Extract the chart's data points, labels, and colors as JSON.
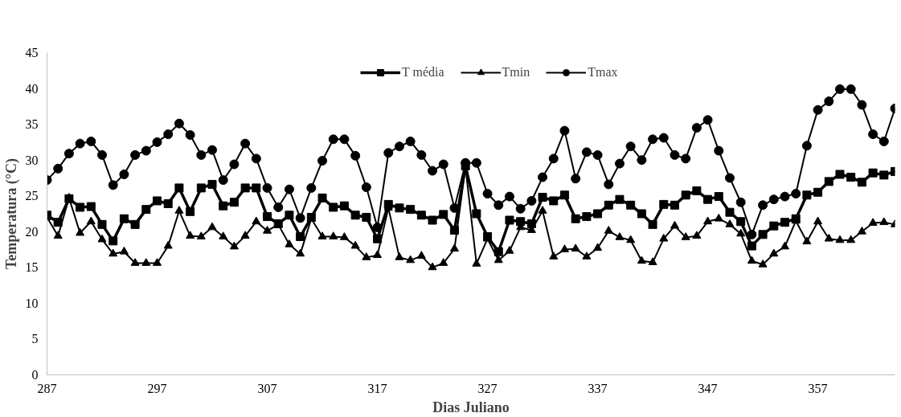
{
  "chart_data": {
    "type": "line",
    "xlabel": "Dias Juliano",
    "ylabel": "Temperatura (°C)",
    "x": [
      287,
      288,
      289,
      290,
      291,
      292,
      293,
      294,
      295,
      296,
      297,
      298,
      299,
      300,
      301,
      302,
      303,
      304,
      305,
      306,
      307,
      308,
      309,
      310,
      311,
      312,
      313,
      314,
      315,
      316,
      317,
      318,
      319,
      320,
      321,
      322,
      323,
      324,
      325,
      326,
      327,
      328,
      329,
      330,
      331,
      332,
      333,
      334,
      335,
      336,
      337,
      338,
      339,
      340,
      341,
      342,
      343,
      344,
      345,
      346,
      347,
      348,
      349,
      350,
      351,
      352,
      353,
      354,
      355,
      356,
      357,
      358,
      359,
      360,
      361,
      362,
      363,
      364
    ],
    "xlim": [
      287,
      364
    ],
    "xticks": [
      287,
      297,
      307,
      317,
      327,
      337,
      347,
      357
    ],
    "ylim": [
      0,
      45
    ],
    "yticks": [
      0,
      5,
      10,
      15,
      20,
      25,
      30,
      35,
      40,
      45
    ],
    "grid": false,
    "legend": "top",
    "series": [
      {
        "name": "T média",
        "color": "#000000",
        "marker": "square",
        "values": [
          22.3,
          21.3,
          24.6,
          23.4,
          23.5,
          21.0,
          18.7,
          21.8,
          21.0,
          23.1,
          24.3,
          23.9,
          26.1,
          22.8,
          26.1,
          26.6,
          23.6,
          24.1,
          26.1,
          26.1,
          22.1,
          21.1,
          22.3,
          19.3,
          22.0,
          24.7,
          23.4,
          23.6,
          22.3,
          22.0,
          19.0,
          23.8,
          23.3,
          23.1,
          22.3,
          21.6,
          22.4,
          20.2,
          29.2,
          22.5,
          19.3,
          17.2,
          21.6,
          21.4,
          21.1,
          24.8,
          24.3,
          25.1,
          21.8,
          22.1,
          22.5,
          23.7,
          24.5,
          23.7,
          22.5,
          21.0,
          23.8,
          23.7,
          25.1,
          25.7,
          24.5,
          24.9,
          22.7,
          21.4,
          18.0,
          19.6,
          20.8,
          21.3,
          21.8,
          25.1,
          25.5,
          27.0,
          28.0,
          27.6,
          26.9,
          28.2,
          27.9,
          28.4
        ]
      },
      {
        "name": "Tmin",
        "color": "#000000",
        "marker": "triangle",
        "values": [
          22.0,
          19.4,
          24.7,
          19.8,
          21.4,
          18.9,
          16.9,
          17.2,
          15.6,
          15.6,
          15.6,
          18.0,
          22.9,
          19.4,
          19.3,
          20.6,
          19.3,
          17.9,
          19.4,
          21.4,
          20.1,
          21.0,
          18.2,
          16.9,
          21.8,
          19.3,
          19.3,
          19.2,
          18.0,
          16.4,
          16.7,
          23.3,
          16.4,
          16.0,
          16.6,
          15.0,
          15.6,
          17.6,
          29.0,
          15.5,
          19.0,
          16.0,
          17.3,
          20.6,
          20.2,
          22.9,
          16.5,
          17.5,
          17.6,
          16.5,
          17.7,
          20.1,
          19.2,
          18.8,
          15.9,
          15.7,
          19.0,
          20.8,
          19.2,
          19.4,
          21.4,
          21.8,
          21.0,
          19.7,
          15.9,
          15.4,
          16.9,
          17.9,
          21.5,
          18.6,
          21.4,
          19.0,
          18.8,
          18.8,
          20.0,
          21.2,
          21.3,
          21.0
        ]
      },
      {
        "name": "Tmax",
        "color": "#000000",
        "marker": "circle",
        "values": [
          27.2,
          28.8,
          30.9,
          32.3,
          32.6,
          30.7,
          26.5,
          28.0,
          30.7,
          31.3,
          32.5,
          33.6,
          35.1,
          33.5,
          30.7,
          31.4,
          27.2,
          29.4,
          32.3,
          30.2,
          26.1,
          23.4,
          25.9,
          21.9,
          26.1,
          29.9,
          32.9,
          32.9,
          30.6,
          26.2,
          20.6,
          31.0,
          31.9,
          32.6,
          30.7,
          28.5,
          29.4,
          23.3,
          29.6,
          29.6,
          25.3,
          23.7,
          24.9,
          23.2,
          24.3,
          27.6,
          30.2,
          34.1,
          27.4,
          31.1,
          30.7,
          26.6,
          29.5,
          31.9,
          30.0,
          32.9,
          33.1,
          30.7,
          30.2,
          34.5,
          35.6,
          31.3,
          27.5,
          24.1,
          19.6,
          23.7,
          24.5,
          24.9,
          25.3,
          32.0,
          37.0,
          38.2,
          39.9,
          39.9,
          37.7,
          33.6,
          32.6,
          37.2
        ]
      }
    ]
  }
}
